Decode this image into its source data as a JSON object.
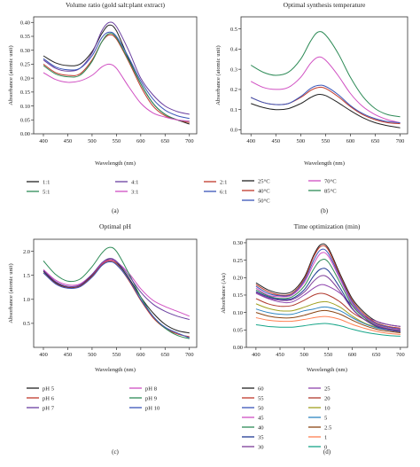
{
  "figure": {
    "panels": [
      {
        "letter": "(a)",
        "chart_data": {
          "type": "line",
          "title": "Volume ratio (gold salt:plant extract)",
          "xlabel": "Wavelength (nm)",
          "ylabel": "Absorbance (atomic unit)",
          "xlim": [
            380,
            715
          ],
          "ylim": [
            0,
            0.42
          ],
          "xticks": [
            400,
            450,
            500,
            550,
            600,
            650,
            700
          ],
          "yticks": [
            0.0,
            0.05,
            0.1,
            0.15,
            0.2,
            0.25,
            0.3,
            0.35,
            0.4
          ],
          "tick_decimals": 2,
          "legend_cols": 3,
          "x": [
            400,
            425,
            450,
            475,
            500,
            520,
            535,
            550,
            575,
            600,
            625,
            650,
            675,
            700
          ],
          "series": [
            {
              "name": "1:1",
              "color": "#222222",
              "values": [
                0.28,
                0.255,
                0.245,
                0.25,
                0.295,
                0.36,
                0.39,
                0.37,
                0.27,
                0.18,
                0.11,
                0.07,
                0.05,
                0.035
              ]
            },
            {
              "name": "4:1",
              "color": "#6a3fa0",
              "values": [
                0.265,
                0.235,
                0.225,
                0.235,
                0.29,
                0.37,
                0.4,
                0.385,
                0.3,
                0.2,
                0.14,
                0.1,
                0.08,
                0.07
              ]
            },
            {
              "name": "2:1",
              "color": "#c0392b",
              "values": [
                0.25,
                0.22,
                0.21,
                0.215,
                0.265,
                0.33,
                0.355,
                0.34,
                0.26,
                0.17,
                0.1,
                0.065,
                0.05,
                0.04
              ]
            },
            {
              "name": "5:1",
              "color": "#2e8b57",
              "values": [
                0.245,
                0.215,
                0.205,
                0.21,
                0.26,
                0.33,
                0.36,
                0.345,
                0.265,
                0.18,
                0.11,
                0.07,
                0.05,
                0.045
              ]
            },
            {
              "name": "3:1",
              "color": "#d04fc2",
              "values": [
                0.22,
                0.195,
                0.185,
                0.19,
                0.21,
                0.24,
                0.25,
                0.235,
                0.17,
                0.11,
                0.075,
                0.06,
                0.05,
                0.045
              ]
            },
            {
              "name": "6:1",
              "color": "#3a55b8",
              "values": [
                0.27,
                0.24,
                0.23,
                0.235,
                0.28,
                0.345,
                0.365,
                0.35,
                0.275,
                0.19,
                0.125,
                0.085,
                0.065,
                0.055
              ]
            }
          ]
        }
      },
      {
        "letter": "(b)",
        "chart_data": {
          "type": "line",
          "title": "Optimal synthesis temperature",
          "xlabel": "Wavelength (nm)",
          "ylabel": "Absorbance (atomic unit)",
          "xlim": [
            380,
            715
          ],
          "ylim": [
            -0.02,
            0.56
          ],
          "xticks": [
            400,
            450,
            500,
            550,
            600,
            650,
            700
          ],
          "yticks": [
            0.0,
            0.1,
            0.2,
            0.3,
            0.4,
            0.5
          ],
          "tick_decimals": 1,
          "legend_cols": 2,
          "x": [
            400,
            425,
            450,
            475,
            500,
            520,
            535,
            550,
            575,
            600,
            625,
            650,
            675,
            700
          ],
          "series": [
            {
              "name": "25°C",
              "color": "#222222",
              "values": [
                0.13,
                0.11,
                0.1,
                0.105,
                0.13,
                0.16,
                0.175,
                0.17,
                0.135,
                0.095,
                0.06,
                0.035,
                0.02,
                0.01
              ]
            },
            {
              "name": "70°C",
              "color": "#d04fc2",
              "values": [
                0.24,
                0.21,
                0.2,
                0.21,
                0.26,
                0.33,
                0.36,
                0.345,
                0.27,
                0.18,
                0.115,
                0.075,
                0.05,
                0.035
              ]
            },
            {
              "name": "40°C",
              "color": "#c0392b",
              "values": [
                0.16,
                0.135,
                0.125,
                0.13,
                0.16,
                0.195,
                0.21,
                0.205,
                0.165,
                0.115,
                0.075,
                0.05,
                0.035,
                0.03
              ]
            },
            {
              "name": "85°C",
              "color": "#2e8b57",
              "values": [
                0.32,
                0.285,
                0.27,
                0.285,
                0.35,
                0.44,
                0.485,
                0.47,
                0.38,
                0.26,
                0.165,
                0.105,
                0.075,
                0.065
              ]
            },
            {
              "name": "50°C",
              "color": "#3a55b8",
              "values": [
                0.16,
                0.135,
                0.125,
                0.13,
                0.165,
                0.205,
                0.22,
                0.215,
                0.175,
                0.12,
                0.08,
                0.055,
                0.04,
                0.035
              ]
            }
          ]
        }
      },
      {
        "letter": "(c)",
        "chart_data": {
          "type": "line",
          "title": "Optimal pH",
          "xlabel": "Wavelength (nm)",
          "ylabel": "Absorbance (atomic unit)",
          "xlim": [
            380,
            715
          ],
          "ylim": [
            0,
            2.25
          ],
          "xticks": [
            400,
            450,
            500,
            550,
            600,
            650,
            700
          ],
          "yticks": [
            0.5,
            1.0,
            1.5,
            2.0
          ],
          "tick_decimals": 1,
          "legend_cols": 2,
          "x": [
            400,
            425,
            450,
            475,
            500,
            520,
            535,
            550,
            575,
            600,
            625,
            650,
            675,
            700
          ],
          "series": [
            {
              "name": "pH 5",
              "color": "#222222",
              "values": [
                1.58,
                1.35,
                1.25,
                1.28,
                1.5,
                1.74,
                1.83,
                1.77,
                1.45,
                1.05,
                0.72,
                0.48,
                0.35,
                0.3
              ]
            },
            {
              "name": "pH 8",
              "color": "#d04fc2",
              "values": [
                1.62,
                1.4,
                1.3,
                1.32,
                1.52,
                1.74,
                1.82,
                1.78,
                1.55,
                1.22,
                0.98,
                0.85,
                0.75,
                0.65
              ]
            },
            {
              "name": "pH 6",
              "color": "#c0392b",
              "values": [
                1.55,
                1.33,
                1.24,
                1.27,
                1.48,
                1.72,
                1.8,
                1.74,
                1.4,
                0.98,
                0.62,
                0.4,
                0.28,
                0.22
              ]
            },
            {
              "name": "pH 9",
              "color": "#2e8b57",
              "values": [
                1.8,
                1.52,
                1.38,
                1.42,
                1.68,
                1.96,
                2.08,
                2.0,
                1.55,
                1.05,
                0.65,
                0.4,
                0.25,
                0.18
              ]
            },
            {
              "name": "pH 7",
              "color": "#6a3fa0",
              "values": [
                1.6,
                1.37,
                1.27,
                1.3,
                1.52,
                1.76,
                1.85,
                1.79,
                1.5,
                1.15,
                0.9,
                0.75,
                0.65,
                0.58
              ]
            },
            {
              "name": "pH 10",
              "color": "#3a55b8",
              "values": [
                1.55,
                1.32,
                1.23,
                1.26,
                1.46,
                1.7,
                1.78,
                1.72,
                1.42,
                1.0,
                0.65,
                0.42,
                0.3,
                0.2
              ]
            }
          ]
        }
      },
      {
        "letter": "(d)",
        "chart_data": {
          "type": "line",
          "title": "Time optimization (min)",
          "xlabel": "Wavelength (nm)",
          "ylabel": "Absorbance (Au)",
          "xlim": [
            380,
            715
          ],
          "ylim": [
            0,
            0.31
          ],
          "xticks": [
            400,
            450,
            500,
            550,
            600,
            650,
            700
          ],
          "yticks": [
            0.0,
            0.05,
            0.1,
            0.15,
            0.2,
            0.25,
            0.3
          ],
          "tick_decimals": 2,
          "legend_cols": 2,
          "x": [
            400,
            425,
            450,
            475,
            500,
            520,
            535,
            550,
            575,
            600,
            625,
            650,
            675,
            700
          ],
          "series": [
            {
              "name": "60",
              "color": "#222222",
              "values": [
                0.185,
                0.165,
                0.155,
                0.16,
                0.2,
                0.265,
                0.295,
                0.285,
                0.21,
                0.14,
                0.1,
                0.075,
                0.065,
                0.06
              ]
            },
            {
              "name": "25",
              "color": "#8e44ad",
              "values": [
                0.155,
                0.14,
                0.13,
                0.13,
                0.15,
                0.17,
                0.18,
                0.175,
                0.155,
                0.12,
                0.09,
                0.075,
                0.065,
                0.06
              ]
            },
            {
              "name": "55",
              "color": "#c0392b",
              "values": [
                0.18,
                0.16,
                0.15,
                0.155,
                0.195,
                0.26,
                0.29,
                0.28,
                0.205,
                0.135,
                0.095,
                0.07,
                0.06,
                0.055
              ]
            },
            {
              "name": "20",
              "color": "#b03a2e",
              "values": [
                0.14,
                0.125,
                0.118,
                0.12,
                0.135,
                0.15,
                0.155,
                0.15,
                0.13,
                0.1,
                0.08,
                0.065,
                0.055,
                0.05
              ]
            },
            {
              "name": "50",
              "color": "#3a55b8",
              "values": [
                0.175,
                0.155,
                0.148,
                0.152,
                0.19,
                0.25,
                0.28,
                0.27,
                0.2,
                0.13,
                0.09,
                0.068,
                0.058,
                0.052
              ]
            },
            {
              "name": "10",
              "color": "#a0a020",
              "values": [
                0.125,
                0.112,
                0.105,
                0.105,
                0.115,
                0.125,
                0.13,
                0.13,
                0.115,
                0.09,
                0.07,
                0.058,
                0.05,
                0.045
              ]
            },
            {
              "name": "45",
              "color": "#d04fc2",
              "values": [
                0.17,
                0.15,
                0.145,
                0.15,
                0.185,
                0.24,
                0.27,
                0.262,
                0.195,
                0.125,
                0.088,
                0.065,
                0.055,
                0.05
              ]
            },
            {
              "name": "5",
              "color": "#2e86c1",
              "values": [
                0.11,
                0.1,
                0.095,
                0.095,
                0.105,
                0.11,
                0.115,
                0.115,
                0.105,
                0.085,
                0.068,
                0.056,
                0.05,
                0.045
              ]
            },
            {
              "name": "40",
              "color": "#2e8b57",
              "values": [
                0.165,
                0.148,
                0.14,
                0.145,
                0.175,
                0.225,
                0.25,
                0.245,
                0.185,
                0.12,
                0.085,
                0.063,
                0.053,
                0.048
              ]
            },
            {
              "name": "2.5",
              "color": "#8b4513",
              "values": [
                0.1,
                0.09,
                0.085,
                0.085,
                0.092,
                0.1,
                0.105,
                0.105,
                0.095,
                0.078,
                0.063,
                0.052,
                0.046,
                0.042
              ]
            },
            {
              "name": "35",
              "color": "#1f3a93",
              "values": [
                0.16,
                0.145,
                0.138,
                0.14,
                0.165,
                0.205,
                0.225,
                0.22,
                0.17,
                0.112,
                0.08,
                0.06,
                0.05,
                0.045
              ]
            },
            {
              "name": "1",
              "color": "#ff7f50",
              "values": [
                0.085,
                0.078,
                0.075,
                0.075,
                0.08,
                0.085,
                0.088,
                0.088,
                0.08,
                0.066,
                0.055,
                0.046,
                0.04,
                0.037
              ]
            },
            {
              "name": "30",
              "color": "#7d3c98",
              "values": [
                0.158,
                0.142,
                0.135,
                0.137,
                0.158,
                0.19,
                0.205,
                0.2,
                0.16,
                0.11,
                0.08,
                0.062,
                0.052,
                0.047
              ]
            },
            {
              "name": "0",
              "color": "#17a589",
              "values": [
                0.065,
                0.06,
                0.058,
                0.058,
                0.062,
                0.066,
                0.068,
                0.068,
                0.062,
                0.052,
                0.044,
                0.038,
                0.034,
                0.032
              ]
            }
          ]
        }
      }
    ]
  }
}
